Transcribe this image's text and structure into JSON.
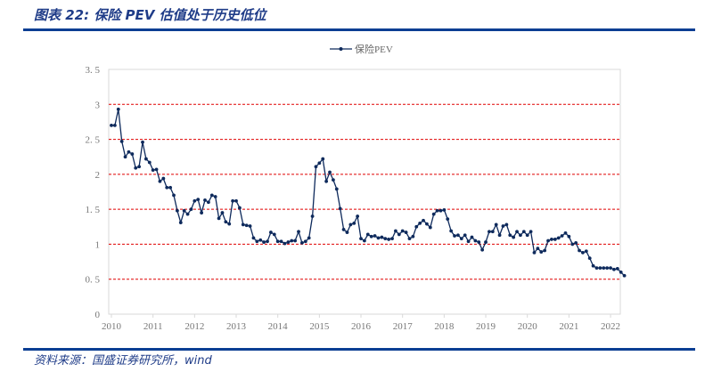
{
  "title": "图表 22:  保险 PEV 估值处于历史低位",
  "source": "资料来源：国盛证券研究所，wind",
  "colors": {
    "series": "#0e2a5c",
    "grid": "#e00000",
    "accent": "#0b3e93"
  },
  "chart_data": {
    "type": "line",
    "title": "",
    "xlabel": "",
    "ylabel": "",
    "ylim": [
      0,
      3.5
    ],
    "yticks": [
      "0",
      "0. 5",
      "1",
      "1. 5",
      "2",
      "2. 5",
      "3",
      "3. 5"
    ],
    "xticks": [
      "2010",
      "2011",
      "2012",
      "2013",
      "2014",
      "2015",
      "2016",
      "2017",
      "2018",
      "2019",
      "2020",
      "2021",
      "2022"
    ],
    "grid": "horizontal dashed red",
    "legend": "top-center",
    "frequency": "monthly, starting 2010-01",
    "series": [
      {
        "name": "保险PEV",
        "values": [
          2.7,
          2.7,
          2.93,
          2.47,
          2.25,
          2.32,
          2.29,
          2.09,
          2.11,
          2.46,
          2.22,
          2.17,
          2.06,
          2.07,
          1.9,
          1.94,
          1.81,
          1.81,
          1.7,
          1.48,
          1.31,
          1.48,
          1.43,
          1.5,
          1.62,
          1.64,
          1.45,
          1.63,
          1.6,
          1.7,
          1.68,
          1.37,
          1.45,
          1.32,
          1.29,
          1.62,
          1.62,
          1.52,
          1.28,
          1.27,
          1.26,
          1.09,
          1.04,
          1.06,
          1.03,
          1.04,
          1.17,
          1.14,
          1.04,
          1.04,
          1.01,
          1.03,
          1.05,
          1.05,
          1.18,
          1.02,
          1.04,
          1.09,
          1.4,
          2.11,
          2.16,
          2.22,
          1.9,
          2.03,
          1.92,
          1.79,
          1.51,
          1.21,
          1.17,
          1.28,
          1.3,
          1.4,
          1.08,
          1.05,
          1.14,
          1.11,
          1.12,
          1.09,
          1.1,
          1.08,
          1.07,
          1.08,
          1.19,
          1.14,
          1.19,
          1.17,
          1.08,
          1.11,
          1.25,
          1.3,
          1.34,
          1.29,
          1.24,
          1.43,
          1.48,
          1.48,
          1.49,
          1.36,
          1.19,
          1.12,
          1.13,
          1.08,
          1.13,
          1.04,
          1.1,
          1.05,
          1.03,
          0.92,
          1.03,
          1.18,
          1.18,
          1.28,
          1.13,
          1.26,
          1.28,
          1.13,
          1.1,
          1.18,
          1.13,
          1.18,
          1.13,
          1.18,
          0.88,
          0.94,
          0.89,
          0.91,
          1.05,
          1.07,
          1.07,
          1.09,
          1.12,
          1.16,
          1.11,
          1.0,
          1.02,
          0.91,
          0.88,
          0.9,
          0.8,
          0.69,
          0.66,
          0.66,
          0.66,
          0.66,
          0.66,
          0.64,
          0.65,
          0.6,
          0.55
        ]
      }
    ]
  }
}
